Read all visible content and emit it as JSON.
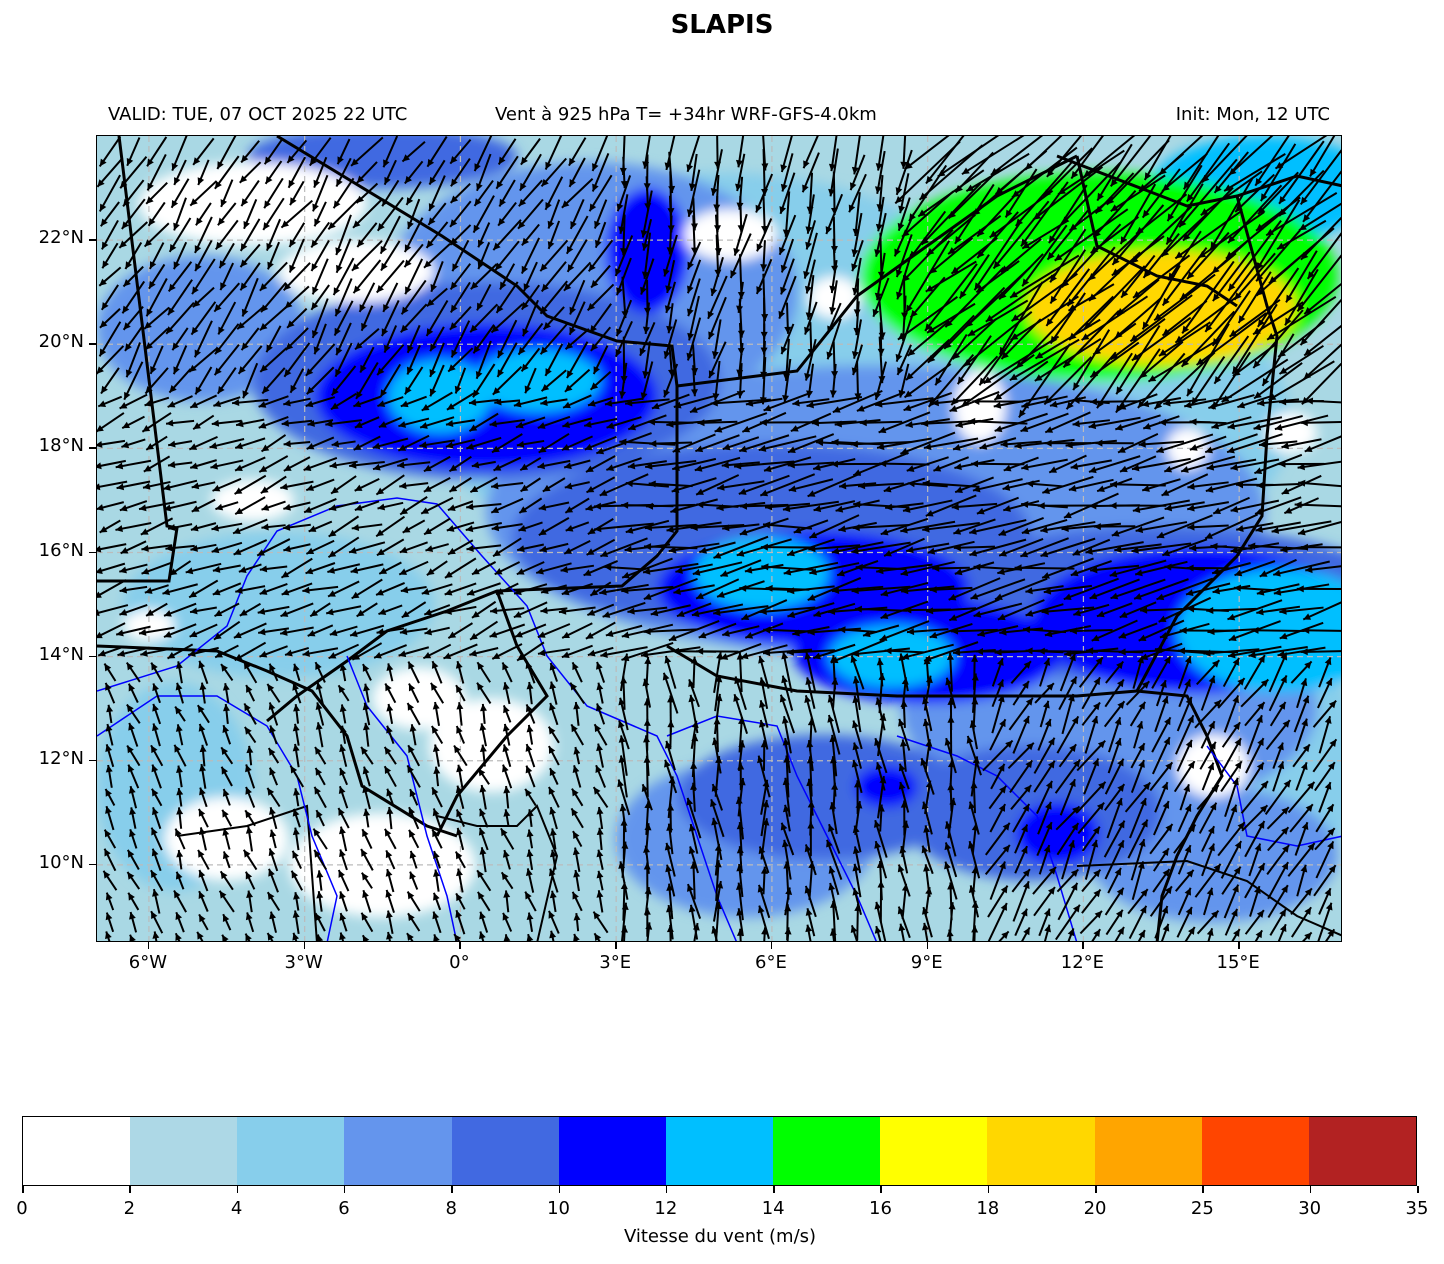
{
  "header": {
    "title": "SLAPIS",
    "valid": "VALID: TUE, 07 OCT 2025 22 UTC",
    "field": "Vent à 925 hPa T= +34hr  WRF-GFS-4.0km",
    "init": "Init: Mon, 12 UTC"
  },
  "map": {
    "extent": {
      "lon": [
        -7,
        17
      ],
      "lat": [
        8.5,
        24
      ]
    },
    "lat_ticks": [
      {
        "value": 22,
        "label": "22°N"
      },
      {
        "value": 20,
        "label": "20°N"
      },
      {
        "value": 18,
        "label": "18°N"
      },
      {
        "value": 16,
        "label": "16°N"
      },
      {
        "value": 14,
        "label": "14°N"
      },
      {
        "value": 12,
        "label": "12°N"
      },
      {
        "value": 10,
        "label": "10°N"
      }
    ],
    "lon_ticks": [
      {
        "value": -6,
        "label": "6°W"
      },
      {
        "value": -3,
        "label": "3°W"
      },
      {
        "value": 0,
        "label": "0°"
      },
      {
        "value": 3,
        "label": "3°E"
      },
      {
        "value": 6,
        "label": "6°E"
      },
      {
        "value": 9,
        "label": "9°E"
      },
      {
        "value": 12,
        "label": "12°E"
      },
      {
        "value": 15,
        "label": "15°E"
      }
    ],
    "gridlines": true,
    "speed_zones": [
      {
        "lon": 13.5,
        "lat": 20.7,
        "rx": 2.6,
        "ry": 1.1,
        "speed": 19
      },
      {
        "lon": 12.3,
        "lat": 21.3,
        "rx": 4.6,
        "ry": 2.0,
        "speed": 15
      },
      {
        "lon": 15.5,
        "lat": 23.0,
        "rx": 2.2,
        "ry": 1.0,
        "speed": 13
      },
      {
        "lon": 15.8,
        "lat": 14.5,
        "rx": 2.0,
        "ry": 1.2,
        "speed": 13
      },
      {
        "lon": 14.2,
        "lat": 14.7,
        "rx": 3.2,
        "ry": 1.4,
        "speed": 11
      },
      {
        "lon": 8.3,
        "lat": 14.0,
        "rx": 1.2,
        "ry": 0.6,
        "speed": 13
      },
      {
        "lon": 5.8,
        "lat": 15.6,
        "rx": 1.3,
        "ry": 0.7,
        "speed": 13
      },
      {
        "lon": -0.4,
        "lat": 19.0,
        "rx": 1.0,
        "ry": 0.7,
        "speed": 13
      },
      {
        "lon": 1.5,
        "lat": 19.3,
        "rx": 1.2,
        "ry": 0.6,
        "speed": 13
      },
      {
        "lon": 0.5,
        "lat": 19.0,
        "rx": 3.3,
        "ry": 1.4,
        "speed": 11
      },
      {
        "lon": 6.8,
        "lat": 15.3,
        "rx": 3.0,
        "ry": 1.1,
        "speed": 11
      },
      {
        "lon": 9.0,
        "lat": 14.1,
        "rx": 2.6,
        "ry": 1.0,
        "speed": 11
      },
      {
        "lon": 3.6,
        "lat": 21.8,
        "rx": 0.8,
        "ry": 1.2,
        "speed": 11
      },
      {
        "lon": 11.5,
        "lat": 10.6,
        "rx": 0.8,
        "ry": 0.6,
        "speed": 11
      },
      {
        "lon": 8.2,
        "lat": 11.5,
        "rx": 0.6,
        "ry": 0.4,
        "speed": 11
      },
      {
        "lon": 6.0,
        "lat": 16.3,
        "rx": 5.0,
        "ry": 1.8,
        "speed": 9
      },
      {
        "lon": 13.5,
        "lat": 15.0,
        "rx": 4.8,
        "ry": 1.5,
        "speed": 9
      },
      {
        "lon": 0.5,
        "lat": 19.3,
        "rx": 4.5,
        "ry": 1.9,
        "speed": 9
      },
      {
        "lon": -1.5,
        "lat": 23.6,
        "rx": 2.6,
        "ry": 0.6,
        "speed": 9
      },
      {
        "lon": 7.0,
        "lat": 11.3,
        "rx": 2.8,
        "ry": 1.2,
        "speed": 9
      },
      {
        "lon": 11.0,
        "lat": 11.0,
        "rx": 2.5,
        "ry": 1.3,
        "speed": 9
      },
      {
        "lon": 8.0,
        "lat": 16.8,
        "rx": 7.5,
        "ry": 2.8,
        "speed": 7
      },
      {
        "lon": 2.5,
        "lat": 21.0,
        "rx": 4.0,
        "ry": 2.5,
        "speed": 7
      },
      {
        "lon": -5.0,
        "lat": 20.3,
        "rx": 2.0,
        "ry": 1.4,
        "speed": 7
      },
      {
        "lon": 12.5,
        "lat": 13.0,
        "rx": 4.0,
        "ry": 2.0,
        "speed": 7
      },
      {
        "lon": 14.5,
        "lat": 10.2,
        "rx": 2.4,
        "ry": 1.3,
        "speed": 7
      },
      {
        "lon": 5.5,
        "lat": 10.5,
        "rx": 2.5,
        "ry": 1.5,
        "speed": 7
      },
      {
        "lon": -3.5,
        "lat": 15.0,
        "rx": 3.0,
        "ry": 1.4,
        "speed": 5
      },
      {
        "lon": 5.0,
        "lat": 19.5,
        "rx": 6.0,
        "ry": 3.8,
        "speed": 5
      },
      {
        "lon": 11.0,
        "lat": 18.5,
        "rx": 5.0,
        "ry": 3.0,
        "speed": 5
      },
      {
        "lon": -5.5,
        "lat": 11.5,
        "rx": 1.5,
        "ry": 2.0,
        "speed": 5
      },
      {
        "lon": 15.5,
        "lat": 12.0,
        "rx": 1.8,
        "ry": 2.5,
        "speed": 5
      },
      {
        "lon": -4.0,
        "lat": 22.7,
        "rx": 2.2,
        "ry": 0.8,
        "speed": 1
      },
      {
        "lon": -2.0,
        "lat": 21.4,
        "rx": 1.5,
        "ry": 0.6,
        "speed": 1
      },
      {
        "lon": 5.2,
        "lat": 22.1,
        "rx": 0.9,
        "ry": 0.5,
        "speed": 1
      },
      {
        "lon": 7.2,
        "lat": 20.9,
        "rx": 0.5,
        "ry": 0.4,
        "speed": 1
      },
      {
        "lon": -4.0,
        "lat": 17.0,
        "rx": 0.8,
        "ry": 0.4,
        "speed": 1
      },
      {
        "lon": 0.6,
        "lat": 12.3,
        "rx": 1.2,
        "ry": 0.9,
        "speed": 1
      },
      {
        "lon": -0.8,
        "lat": 13.2,
        "rx": 0.9,
        "ry": 0.6,
        "speed": 1
      },
      {
        "lon": -1.5,
        "lat": 10.0,
        "rx": 1.8,
        "ry": 1.0,
        "speed": 1
      },
      {
        "lon": -4.5,
        "lat": 10.5,
        "rx": 1.2,
        "ry": 0.8,
        "speed": 1
      },
      {
        "lon": 14.5,
        "lat": 11.9,
        "rx": 0.7,
        "ry": 0.6,
        "speed": 1
      },
      {
        "lon": 10.0,
        "lat": 18.8,
        "rx": 0.5,
        "ry": 0.7,
        "speed": 1
      },
      {
        "lon": 16.0,
        "lat": 18.3,
        "rx": 0.5,
        "ry": 0.4,
        "speed": 1
      },
      {
        "lon": 14.0,
        "lat": 18.0,
        "rx": 0.4,
        "ry": 0.4,
        "speed": 1
      },
      {
        "lon": -6.0,
        "lat": 14.6,
        "rx": 0.5,
        "ry": 0.3,
        "speed": 1
      }
    ],
    "wind_regions": [
      {
        "lon_min": -7,
        "lon_max": 3,
        "lat_min": 19,
        "lat_max": 24,
        "dir_to_deg": 215,
        "speed": 6
      },
      {
        "lon_min": 3,
        "lon_max": 9,
        "lat_min": 19,
        "lat_max": 24,
        "dir_to_deg": 190,
        "speed": 7
      },
      {
        "lon_min": 9,
        "lon_max": 17,
        "lat_min": 19,
        "lat_max": 24,
        "dir_to_deg": 225,
        "speed": 14
      },
      {
        "lon_min": -7,
        "lon_max": 3,
        "lat_min": 14,
        "lat_max": 19,
        "dir_to_deg": 250,
        "speed": 5
      },
      {
        "lon_min": 3,
        "lon_max": 17,
        "lat_min": 14,
        "lat_max": 19,
        "dir_to_deg": 260,
        "speed": 9
      },
      {
        "lon_min": -7,
        "lon_max": 3,
        "lat_min": 8.5,
        "lat_max": 14,
        "dir_to_deg": 340,
        "speed": 3
      },
      {
        "lon_min": 3,
        "lon_max": 10,
        "lat_min": 8.5,
        "lat_max": 14,
        "dir_to_deg": 355,
        "speed": 6
      },
      {
        "lon_min": 10,
        "lon_max": 17,
        "lat_min": 8.5,
        "lat_max": 14,
        "dir_to_deg": 30,
        "speed": 6
      }
    ]
  },
  "colorbar": {
    "levels": [
      0,
      2,
      4,
      6,
      8,
      10,
      12,
      14,
      16,
      18,
      20,
      25,
      30,
      35
    ],
    "labels": [
      "0",
      "2",
      "4",
      "6",
      "8",
      "10",
      "12",
      "14",
      "16",
      "18",
      "20",
      "25",
      "30",
      "35"
    ],
    "colors": [
      "#ffffff",
      "#add8e6",
      "#87ceeb",
      "#6495ed",
      "#4169e1",
      "#0000ff",
      "#00bfff",
      "#00ff00",
      "#ffff00",
      "#ffd700",
      "#ffa500",
      "#ff4500",
      "#b22222"
    ],
    "title": "Vitesse du vent (m/s)"
  }
}
